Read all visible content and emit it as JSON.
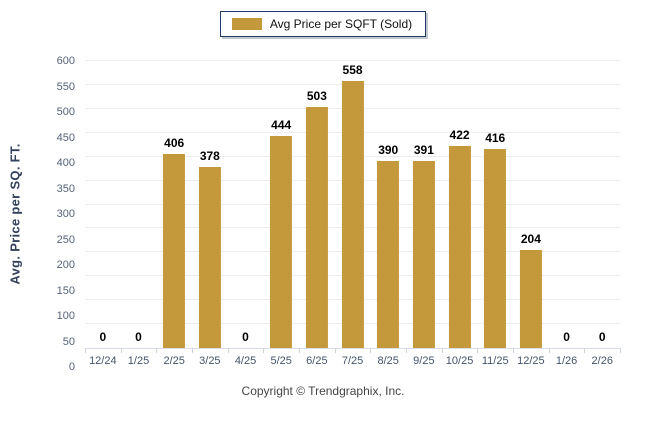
{
  "legend": {
    "label": "Avg Price per SQFT (Sold)",
    "swatch_color": "#c4993c"
  },
  "chart_data": {
    "type": "bar",
    "title": "",
    "series_name": "Avg Price per SQFT (Sold)",
    "categories": [
      "12/24",
      "1/25",
      "2/25",
      "3/25",
      "4/25",
      "5/25",
      "6/25",
      "7/25",
      "8/25",
      "9/25",
      "10/25",
      "11/25",
      "12/25",
      "1/26",
      "2/26"
    ],
    "values": [
      0,
      0,
      406,
      378,
      0,
      444,
      503,
      558,
      390,
      391,
      422,
      416,
      204,
      0,
      0
    ],
    "xlabel": "",
    "ylabel": "Avg. Price per SQ. FT.",
    "ylim": [
      0,
      600
    ],
    "y_ticks": [
      0,
      50,
      100,
      150,
      200,
      250,
      300,
      350,
      400,
      450,
      500,
      550,
      600
    ],
    "grid": "horizontal",
    "legend_position": "top-center",
    "bar_color": "#c4993c",
    "value_labels_shown": true
  },
  "footer": {
    "copyright": "Copyright © Trendgraphix, Inc."
  },
  "colors": {
    "bar": "#c4993c",
    "legend_border": "#1f3a66",
    "gridline": "#ededed",
    "axis_line": "#d9dee6",
    "tick_label": "#44546a",
    "y_axis_title": "#33405c",
    "value_label": "#000000",
    "background": "#ffffff"
  }
}
